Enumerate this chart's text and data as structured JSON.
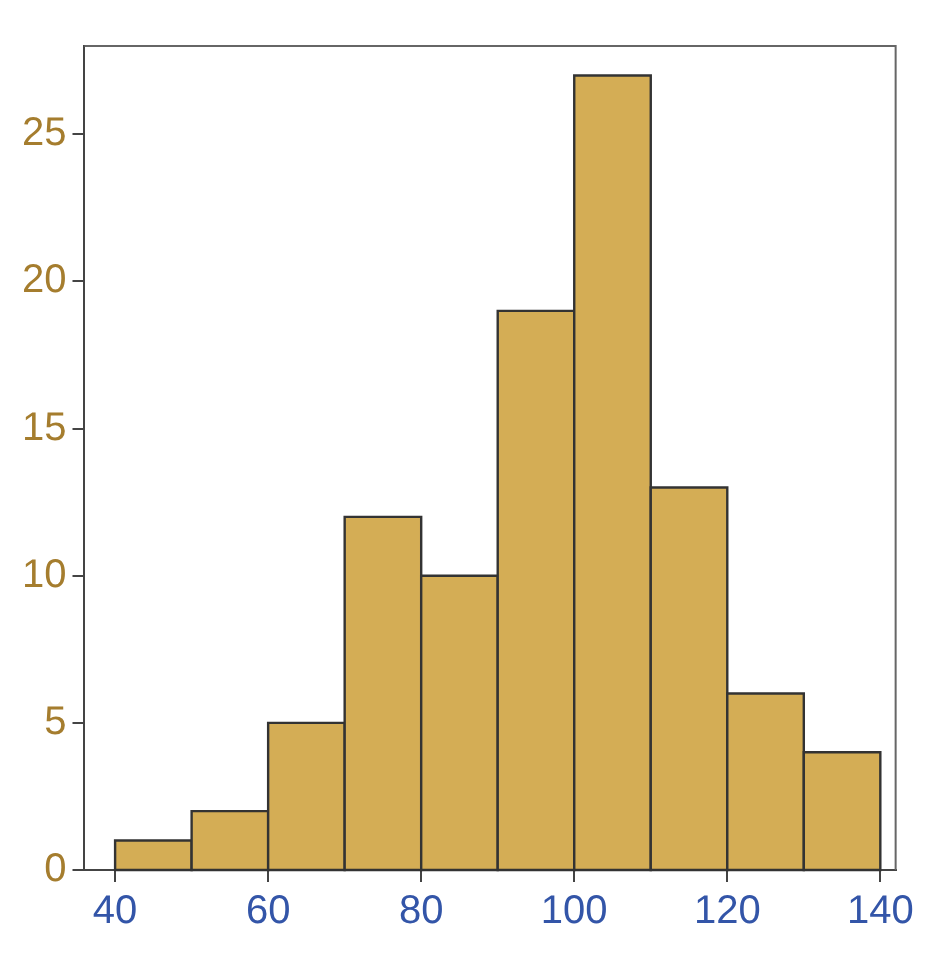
{
  "chart_data": {
    "type": "histogram",
    "bins": [
      40,
      50,
      60,
      70,
      80,
      90,
      100,
      110,
      120,
      130,
      140
    ],
    "values": [
      1,
      2,
      5,
      12,
      10,
      19,
      27,
      13,
      6,
      4
    ],
    "color": "#d4ad55",
    "xlim": [
      36,
      142
    ],
    "xticks": [
      40,
      60,
      80,
      100,
      120,
      140
    ],
    "ylim": [
      0,
      28
    ],
    "yticks": [
      0,
      5,
      10,
      15,
      20,
      25
    ]
  }
}
